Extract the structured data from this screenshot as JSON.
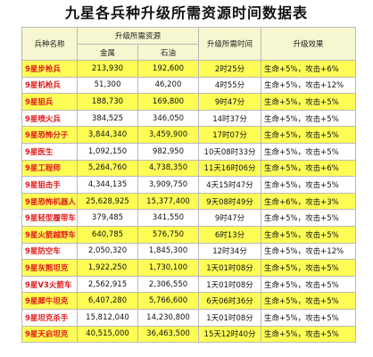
{
  "title": "九星各兵种升级所需资源时间数据表",
  "headers": {
    "unit": "兵种名称",
    "resources": "升级所需资源",
    "metal": "金属",
    "oil": "石油",
    "time": "升级所需时间",
    "effect": "升级效果"
  },
  "rows": [
    {
      "name": "9星步枪兵",
      "metal": "213,930",
      "oil": "192,600",
      "time": "2时25分",
      "effect": "生命+5%，攻击+6%"
    },
    {
      "name": "9星机枪兵",
      "metal": "51,300",
      "oil": "46,200",
      "time": "4时55分",
      "effect": "生命+5%，攻击+12%"
    },
    {
      "name": "9星狙兵",
      "metal": "188,730",
      "oil": "169,800",
      "time": "9时47分",
      "effect": "生命+5%，攻击+5%"
    },
    {
      "name": "9星喷火兵",
      "metal": "384,525",
      "oil": "346,050",
      "time": "14时37分",
      "effect": "生命+5%，攻击+5%"
    },
    {
      "name": "9星恐怖分子",
      "metal": "3,844,340",
      "oil": "3,459,900",
      "time": "17时07分",
      "effect": "生命+5%，攻击+5%"
    },
    {
      "name": "9星医生",
      "metal": "1,092,150",
      "oil": "982,950",
      "time": "10天08时33分",
      "effect": "生命+5%，攻击+5%"
    },
    {
      "name": "9星工程师",
      "metal": "5,264,760",
      "oil": "4,738,350",
      "time": "11天16时06分",
      "effect": "生命+5%，攻击+6%"
    },
    {
      "name": "9星狙击手",
      "metal": "4,344,135",
      "oil": "3,909,750",
      "time": "4天15时47分",
      "effect": "生命+5%，攻击+5%"
    },
    {
      "name": "9星恐怖机器人",
      "metal": "25,628,925",
      "oil": "15,377,400",
      "time": "9天08时49分",
      "effect": "生命+6%，攻击+3%"
    },
    {
      "name": "9星轻型履带车",
      "metal": "379,485",
      "oil": "341,550",
      "time": "9时47分",
      "effect": "生命+5%，攻击+5%"
    },
    {
      "name": "9星火箭越野车",
      "metal": "640,785",
      "oil": "576,750",
      "time": "6时13分",
      "effect": "生命+5%，攻击+5%"
    },
    {
      "name": "9星防空车",
      "metal": "2,050,320",
      "oil": "1,845,300",
      "time": "12时34分",
      "effect": "生命+5%，攻击+12%"
    },
    {
      "name": "9星灰熊坦克",
      "metal": "1,922,250",
      "oil": "1,730,100",
      "time": "1天01时08分",
      "effect": "生命+5%，攻击+5%"
    },
    {
      "name": "9星V3火箭车",
      "metal": "2,562,915",
      "oil": "2,306,550",
      "time": "1天01时08分",
      "effect": "生命+5%，攻击+5%"
    },
    {
      "name": "9星犀牛坦克",
      "metal": "6,407,280",
      "oil": "5,766,600",
      "time": "6天06时36分",
      "effect": "生命+5%，攻击+5%"
    },
    {
      "name": "9星坦克杀手",
      "metal": "15,812,040",
      "oil": "14,230,800",
      "time": "1天01时08分",
      "effect": "生命+5%，攻击+5%"
    },
    {
      "name": "9星天启坦克",
      "metal": "40,515,000",
      "oil": "36,463,500",
      "time": "15天12时40分",
      "effect": "生命+5%，攻击+5%"
    }
  ]
}
